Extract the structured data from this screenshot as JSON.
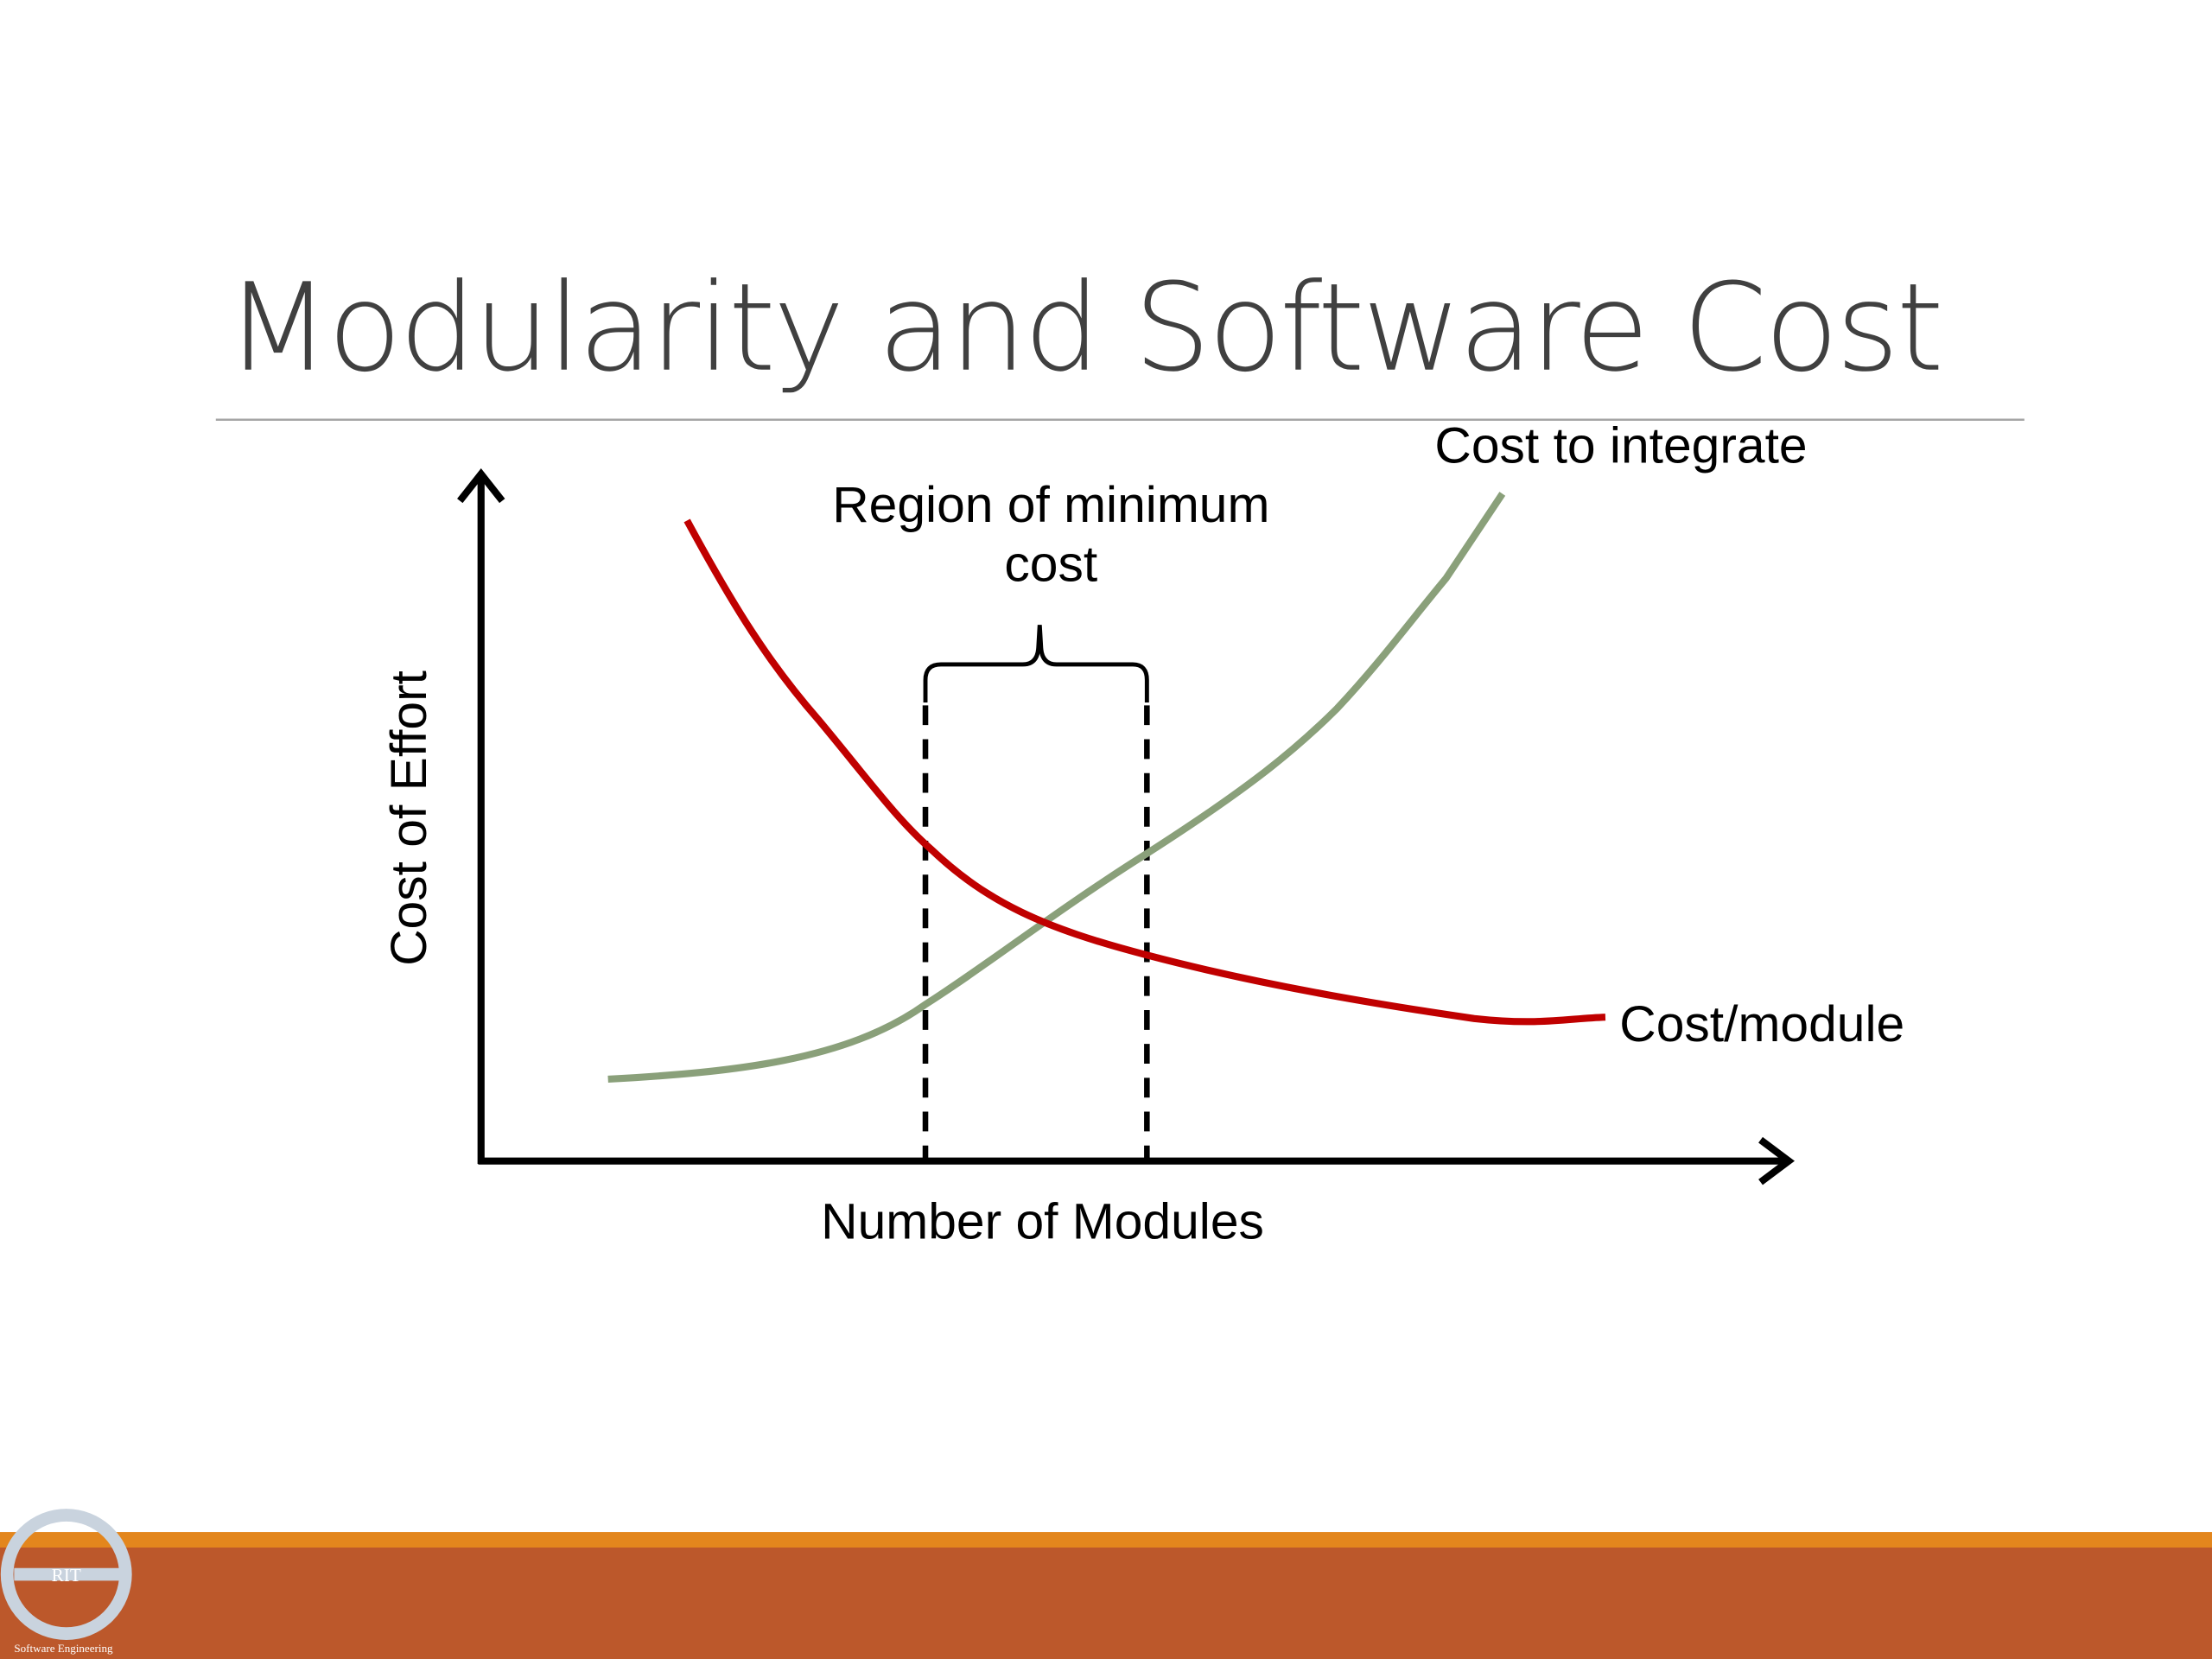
{
  "slide": {
    "title": "Modularity and Software Cost",
    "diagram": {
      "y_axis_label": "Cost of Effort",
      "x_axis_label": "Number of Modules",
      "region_label": [
        "Region of minimum",
        "cost"
      ],
      "curve_labels": {
        "integrate": "Cost to integrate",
        "module": "Cost/module"
      }
    },
    "logo": {
      "initials": "RIT",
      "caption": "Software Engineering"
    }
  }
}
